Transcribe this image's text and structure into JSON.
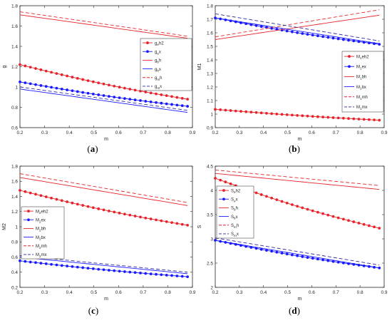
{
  "panel_labels": [
    "(a)",
    "(b)",
    "(c)",
    "(d)"
  ],
  "colors": {
    "red": "#e8232a",
    "blue": "#1a1aff",
    "navy": "#2a2aa0",
    "axis": "#262626"
  },
  "chart_data": [
    {
      "type": "line",
      "panel": "(a)",
      "xlabel": "m",
      "ylabel": "g",
      "xlim": [
        0.2,
        0.9
      ],
      "ylim": [
        0.6,
        1.8
      ],
      "xticks": [
        0.2,
        0.3,
        0.4,
        0.5,
        0.6,
        0.7,
        0.8,
        0.9
      ],
      "yticks": [
        0.6,
        0.8,
        1,
        1.2,
        1.4,
        1.6,
        1.8
      ],
      "legend_position": "right",
      "series": [
        {
          "name": "g_eh2",
          "main": "g",
          "sub": "e",
          "suffix": "h2",
          "color": "#e8232a",
          "dash": "solid",
          "marker": true,
          "x": [
            0.2,
            0.88
          ],
          "y": [
            1.22,
            0.88
          ]
        },
        {
          "name": "g_ex",
          "main": "g",
          "sub": "e",
          "suffix": "x",
          "color": "#1a1aff",
          "dash": "solid",
          "marker": true,
          "x": [
            0.2,
            0.88
          ],
          "y": [
            1.05,
            0.81
          ]
        },
        {
          "name": "g_bh",
          "main": "g",
          "sub": "b",
          "suffix": "h",
          "color": "#e8232a",
          "dash": "solid",
          "marker": false,
          "x": [
            0.2,
            0.88
          ],
          "y": [
            1.71,
            1.48
          ]
        },
        {
          "name": "g_bx",
          "main": "g",
          "sub": "b",
          "suffix": "x",
          "color": "#1a1aff",
          "dash": "solid",
          "marker": false,
          "x": [
            0.2,
            0.88
          ],
          "y": [
            0.98,
            0.75
          ]
        },
        {
          "name": "g_mh",
          "main": "g",
          "sub": "m",
          "suffix": "h",
          "color": "#e8232a",
          "dash": "dashed",
          "marker": false,
          "x": [
            0.2,
            0.88
          ],
          "y": [
            1.74,
            1.5
          ]
        },
        {
          "name": "g_mx",
          "main": "g",
          "sub": "m",
          "suffix": "x",
          "color": "#2a2aa0",
          "dash": "dashed",
          "marker": false,
          "x": [
            0.2,
            0.88
          ],
          "y": [
            1.0,
            0.77
          ]
        }
      ]
    },
    {
      "type": "line",
      "panel": "(b)",
      "xlabel": "m",
      "ylabel": "M1",
      "xlim": [
        0.2,
        0.9
      ],
      "ylim": [
        0.9,
        1.8
      ],
      "xticks": [
        0.2,
        0.3,
        0.4,
        0.5,
        0.6,
        0.7,
        0.8,
        0.9
      ],
      "yticks": [
        0.9,
        1,
        1.1,
        1.2,
        1.3,
        1.4,
        1.5,
        1.6,
        1.7,
        1.8
      ],
      "legend_position": "right",
      "series": [
        {
          "name": "M1eh2",
          "main": "M",
          "sub": "1",
          "suffix": "eh2",
          "color": "#e8232a",
          "dash": "solid",
          "marker": true,
          "x": [
            0.2,
            0.88
          ],
          "y": [
            1.035,
            0.955
          ]
        },
        {
          "name": "M1ex",
          "main": "M",
          "sub": "1",
          "suffix": "ex",
          "color": "#1a1aff",
          "dash": "solid",
          "marker": true,
          "x": [
            0.2,
            0.88
          ],
          "y": [
            1.71,
            1.515
          ]
        },
        {
          "name": "M1bh",
          "main": "M",
          "sub": "1",
          "suffix": "bh",
          "color": "#e8232a",
          "dash": "solid",
          "marker": false,
          "x": [
            0.2,
            0.88
          ],
          "y": [
            1.55,
            1.73
          ]
        },
        {
          "name": "M1bx",
          "main": "M",
          "sub": "1",
          "suffix": "bx",
          "color": "#1a1aff",
          "dash": "solid",
          "marker": false,
          "x": [
            0.2,
            0.88
          ],
          "y": [
            1.71,
            1.52
          ]
        },
        {
          "name": "M1mh",
          "main": "M",
          "sub": "1",
          "suffix": "mh",
          "color": "#e8232a",
          "dash": "dashed",
          "marker": false,
          "x": [
            0.2,
            0.88
          ],
          "y": [
            1.57,
            1.77
          ]
        },
        {
          "name": "M1mx",
          "main": "M",
          "sub": "1",
          "suffix": "mx",
          "color": "#2a2aa0",
          "dash": "dashed",
          "marker": false,
          "x": [
            0.2,
            0.88
          ],
          "y": [
            1.74,
            1.54
          ]
        }
      ]
    },
    {
      "type": "line",
      "panel": "(c)",
      "xlabel": "m",
      "ylabel": "M2",
      "xlim": [
        0.2,
        0.9
      ],
      "ylim": [
        0.2,
        1.8
      ],
      "xticks": [
        0.2,
        0.3,
        0.4,
        0.5,
        0.6,
        0.7,
        0.8,
        0.9
      ],
      "yticks": [
        0.2,
        0.4,
        0.6,
        0.8,
        1,
        1.2,
        1.4,
        1.6,
        1.8
      ],
      "legend_position": "left",
      "series": [
        {
          "name": "M2eh2",
          "main": "M",
          "sub": "2",
          "suffix": "eh2",
          "color": "#e8232a",
          "dash": "solid",
          "marker": true,
          "x": [
            0.2,
            0.88
          ],
          "y": [
            1.48,
            1.02
          ]
        },
        {
          "name": "M2ex",
          "main": "M",
          "sub": "2",
          "suffix": "ex",
          "color": "#1a1aff",
          "dash": "solid",
          "marker": true,
          "x": [
            0.2,
            0.88
          ],
          "y": [
            0.55,
            0.34
          ]
        },
        {
          "name": "M2bh",
          "main": "M",
          "sub": "2",
          "suffix": "bh",
          "color": "#e8232a",
          "dash": "solid",
          "marker": false,
          "x": [
            0.2,
            0.88
          ],
          "y": [
            1.65,
            1.28
          ]
        },
        {
          "name": "M2bx",
          "main": "M",
          "sub": "2",
          "suffix": "bx",
          "color": "#1a1aff",
          "dash": "solid",
          "marker": false,
          "x": [
            0.2,
            0.88
          ],
          "y": [
            0.6,
            0.38
          ]
        },
        {
          "name": "M2mh",
          "main": "M",
          "sub": "2",
          "suffix": "mh",
          "color": "#e8232a",
          "dash": "dashed",
          "marker": false,
          "x": [
            0.2,
            0.88
          ],
          "y": [
            1.7,
            1.32
          ]
        },
        {
          "name": "M2mx",
          "main": "M",
          "sub": "2",
          "suffix": "mx",
          "color": "#2a2aa0",
          "dash": "dashed",
          "marker": false,
          "x": [
            0.2,
            0.88
          ],
          "y": [
            0.62,
            0.4
          ]
        }
      ]
    },
    {
      "type": "line",
      "panel": "(d)",
      "xlabel": "m",
      "ylabel": "S",
      "xlim": [
        0.2,
        0.9
      ],
      "ylim": [
        2,
        4.5
      ],
      "xticks": [
        0.2,
        0.3,
        0.4,
        0.5,
        0.6,
        0.7,
        0.8,
        0.9
      ],
      "yticks": [
        2,
        2.5,
        3,
        3.5,
        4,
        4.5
      ],
      "legend_position": "left",
      "series": [
        {
          "name": "S_eh2",
          "main": "S",
          "sub": "e",
          "suffix": "h2",
          "color": "#e8232a",
          "dash": "solid",
          "marker": true,
          "x": [
            0.2,
            0.88
          ],
          "y": [
            4.25,
            3.22
          ]
        },
        {
          "name": "S_ex",
          "main": "S",
          "sub": "e",
          "suffix": "x",
          "color": "#1a1aff",
          "dash": "solid",
          "marker": true,
          "x": [
            0.2,
            0.88
          ],
          "y": [
            2.97,
            2.4
          ]
        },
        {
          "name": "S_bh",
          "main": "S",
          "sub": "b",
          "suffix": "h",
          "color": "#e8232a",
          "dash": "solid",
          "marker": false,
          "x": [
            0.2,
            0.88
          ],
          "y": [
            4.35,
            4.02
          ]
        },
        {
          "name": "S_bx",
          "main": "S",
          "sub": "b",
          "suffix": "x",
          "color": "#1a1aff",
          "dash": "solid",
          "marker": false,
          "x": [
            0.2,
            0.88
          ],
          "y": [
            2.97,
            2.4
          ]
        },
        {
          "name": "S_mh",
          "main": "S",
          "sub": "m",
          "suffix": "h",
          "color": "#e8232a",
          "dash": "dashed",
          "marker": false,
          "x": [
            0.2,
            0.88
          ],
          "y": [
            4.42,
            4.1
          ]
        },
        {
          "name": "S_mx",
          "main": "S",
          "sub": "m",
          "suffix": "x",
          "color": "#2a2aa0",
          "dash": "dashed",
          "marker": false,
          "x": [
            0.2,
            0.88
          ],
          "y": [
            3.02,
            2.46
          ]
        }
      ]
    }
  ]
}
